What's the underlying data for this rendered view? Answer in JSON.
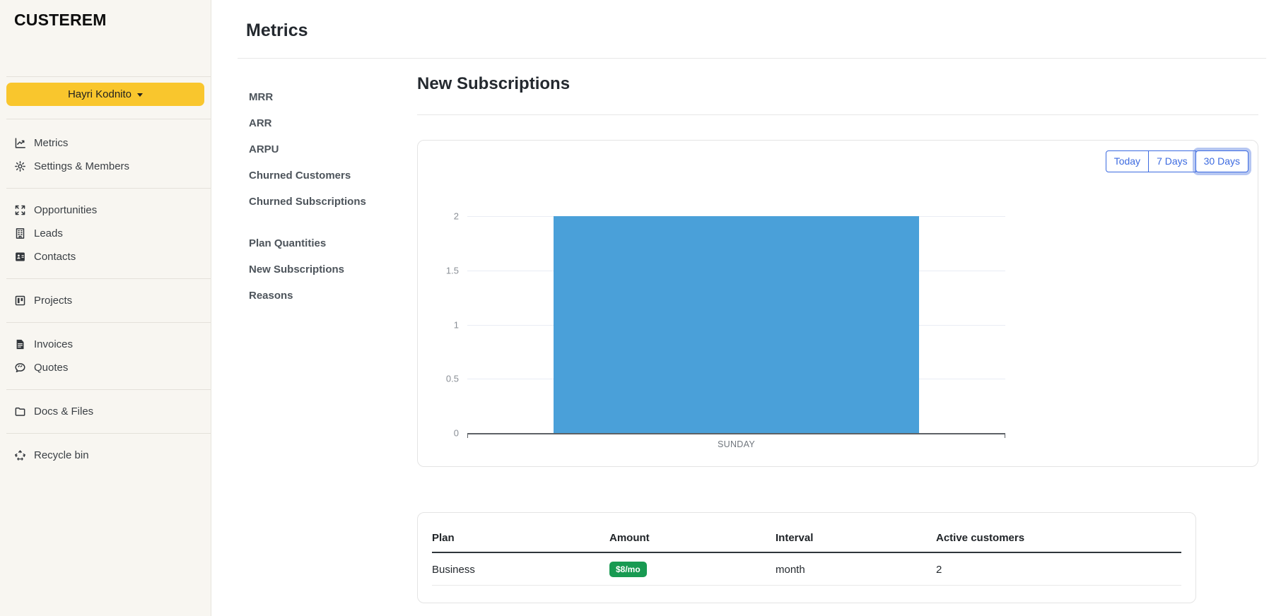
{
  "app": {
    "name": "CUSTEREM"
  },
  "sidebar": {
    "user_button": {
      "label": "Hayri Kodnito"
    },
    "groups": [
      {
        "items": [
          {
            "label": "Metrics",
            "icon": "chart-trend-icon"
          },
          {
            "label": "Settings & Members",
            "icon": "gear-icon"
          }
        ]
      },
      {
        "items": [
          {
            "label": "Opportunities",
            "icon": "arrows-expand-icon"
          },
          {
            "label": "Leads",
            "icon": "building-icon"
          },
          {
            "label": "Contacts",
            "icon": "contact-card-icon"
          }
        ]
      },
      {
        "items": [
          {
            "label": "Projects",
            "icon": "kanban-icon"
          }
        ]
      },
      {
        "items": [
          {
            "label": "Invoices",
            "icon": "invoice-icon"
          },
          {
            "label": "Quotes",
            "icon": "speech-bubble-icon"
          }
        ]
      },
      {
        "items": [
          {
            "label": "Docs & Files",
            "icon": "folder-icon"
          }
        ]
      },
      {
        "items": [
          {
            "label": "Recycle bin",
            "icon": "recycle-icon"
          }
        ]
      }
    ]
  },
  "page": {
    "title": "Metrics"
  },
  "metrics_nav": {
    "groups": [
      [
        "MRR",
        "ARR",
        "ARPU",
        "Churned Customers",
        "Churned Subscriptions"
      ],
      [
        "Plan Quantities",
        "New Subscriptions",
        "Reasons"
      ]
    ]
  },
  "section": {
    "title": "New Subscriptions"
  },
  "range_buttons": [
    {
      "label": "Today",
      "active": false
    },
    {
      "label": "7 Days",
      "active": false
    },
    {
      "label": "30 Days",
      "active": true
    }
  ],
  "chart_data": {
    "type": "bar",
    "title": "",
    "categories": [
      "SUNDAY"
    ],
    "values": [
      2
    ],
    "xlabel": "",
    "ylabel": "",
    "ylim": [
      0,
      2
    ],
    "yticks": [
      0,
      0.5,
      1,
      1.5,
      2
    ],
    "grid": true,
    "legend": false,
    "bar_color": "#4aa0d9"
  },
  "table": {
    "headers": [
      "Plan",
      "Amount",
      "Interval",
      "Active customers"
    ],
    "rows": [
      {
        "plan": "Business",
        "amount": "$8/mo",
        "interval": "month",
        "active_customers": "2"
      }
    ]
  },
  "colors": {
    "sidebar_bg": "#f8f6f1",
    "accent_yellow": "#f9c62d",
    "button_blue": "#3d6be0",
    "bar_blue": "#4aa0d9",
    "badge_green": "#189a52"
  }
}
